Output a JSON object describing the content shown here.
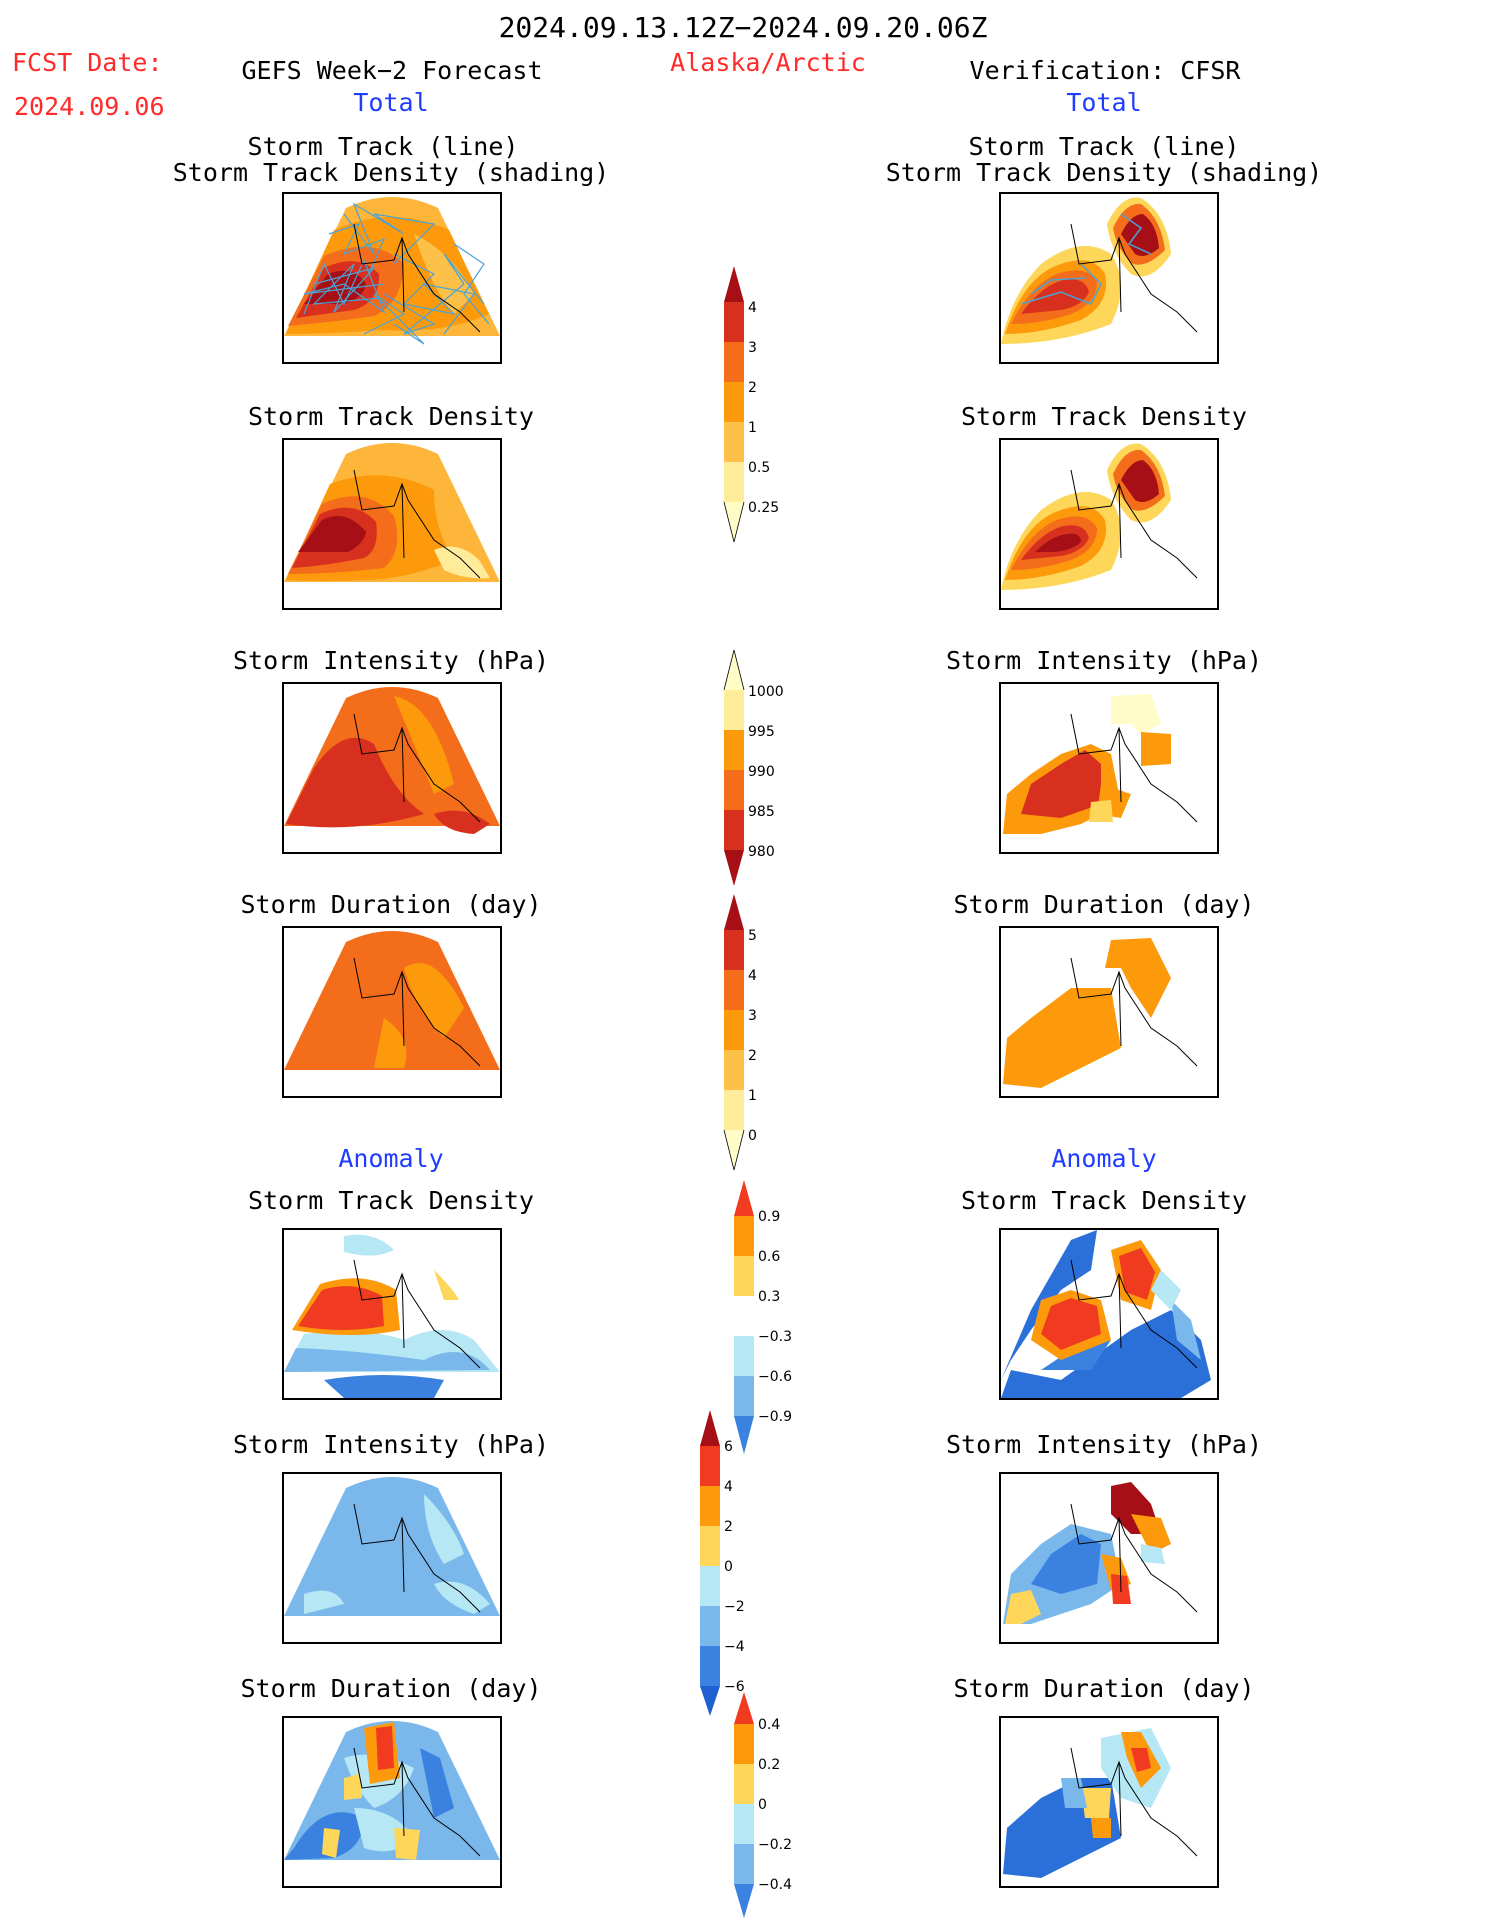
{
  "header": {
    "date_range": "2024.09.13.12Z−2024.09.20.06Z",
    "fcst_label": "FCST Date:",
    "fcst_date": "2024.09.06",
    "left_title": "GEFS Week−2 Forecast",
    "region": "Alaska/Arctic",
    "right_title": "Verification: CFSR",
    "left_subtitle": "Total",
    "right_subtitle": "Total",
    "left_anomaly": "Anomaly",
    "right_anomaly": "Anomaly"
  },
  "panels": {
    "track_line": "Storm Track (line)",
    "track_shading": "Storm Track Density (shading)",
    "density": "Storm Track Density",
    "intensity": "Storm Intensity (hPa)",
    "duration": "Storm Duration (day)",
    "anom_density": "Storm Track Density",
    "anom_intensity": "Storm Intensity (hPa)",
    "anom_duration": "Storm Duration (day)"
  },
  "colorbars": {
    "density": {
      "labels": [
        "4",
        "3",
        "2",
        "1",
        "0.5",
        "0.25"
      ],
      "colors": [
        "#a50f15",
        "#d7301f",
        "#f46d1a",
        "#fd9a0c",
        "#fdc14a",
        "#feec9a",
        "#fffcc8"
      ]
    },
    "intensity": {
      "labels": [
        "1000",
        "995",
        "990",
        "985",
        "980"
      ],
      "colors": [
        "#fffcc8",
        "#feec9a",
        "#fd9a0c",
        "#f46d1a",
        "#d7301f",
        "#a50f15"
      ]
    },
    "duration": {
      "labels": [
        "5",
        "4",
        "3",
        "2",
        "1",
        "0"
      ],
      "colors": [
        "#a50f15",
        "#d7301f",
        "#f46d1a",
        "#fd9a0c",
        "#fdc14a",
        "#feec9a",
        "#fffcc8"
      ]
    },
    "anom_density": {
      "labels": [
        "0.9",
        "0.6",
        "0.3",
        "−0.3",
        "−0.6",
        "−0.9"
      ],
      "colors": [
        "#f03b20",
        "#fd9a0c",
        "#fed65a",
        "#ffffff",
        "#b6e7f5",
        "#7ab8ec",
        "#3b82e0",
        "#1f5fd0"
      ]
    },
    "anom_intensity": {
      "labels": [
        "6",
        "4",
        "2",
        "0",
        "−2",
        "−4",
        "−6"
      ],
      "colors": [
        "#a50f15",
        "#f03b20",
        "#fd9a0c",
        "#fed65a",
        "#b6e7f5",
        "#7ab8ec",
        "#3b82e0",
        "#1f5fd0"
      ]
    },
    "anom_duration": {
      "labels": [
        "0.4",
        "0.2",
        "0",
        "−0.2",
        "−0.4"
      ],
      "colors": [
        "#f03b20",
        "#fd9a0c",
        "#fed65a",
        "#b6e7f5",
        "#7ab8ec",
        "#3b82e0",
        "#1f5fd0"
      ]
    }
  }
}
